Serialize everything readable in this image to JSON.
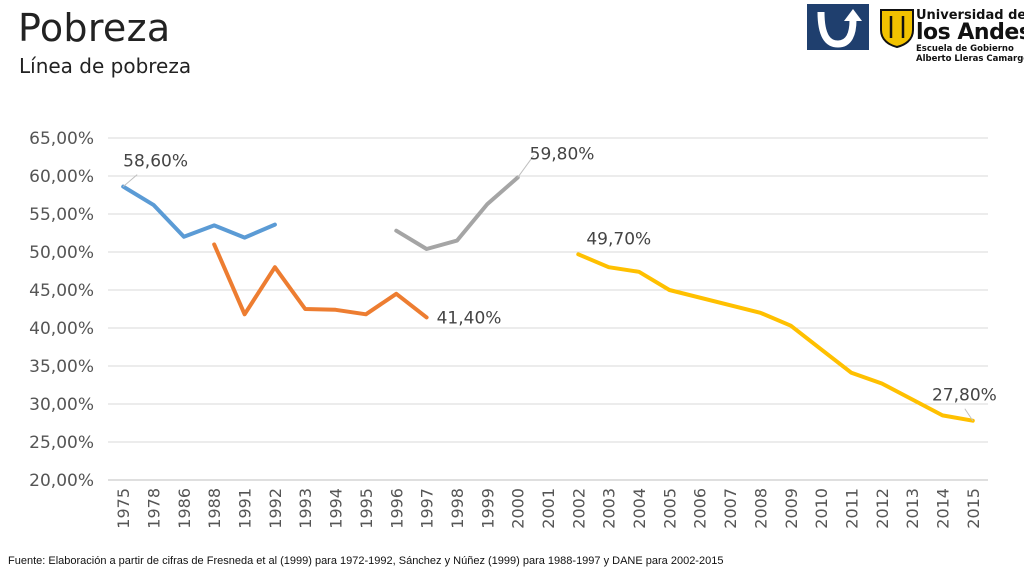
{
  "header": {
    "title": "Pobreza",
    "subtitle": "Línea de pobreza"
  },
  "logos": {
    "university_line1": "Universidad de",
    "university_line2": "los Andes",
    "school_line1": "Escuela de Gobierno",
    "school_line2": "Alberto Lleras Camargo",
    "accent_color": "#1f3f6e",
    "shield_color": "#f2c200"
  },
  "footer": {
    "source": "Fuente: Elaboración a partir de cifras de Fresneda et al (1999) para 1972-1992, Sánchez y Núñez (1999) para 1988-1997 y DANE para 2002-2015"
  },
  "chart_data": {
    "type": "line",
    "title": "",
    "xlabel": "",
    "ylabel": "",
    "ylim": [
      20,
      65
    ],
    "y_tick_labels": [
      "20,00%",
      "25,00%",
      "30,00%",
      "35,00%",
      "40,00%",
      "45,00%",
      "50,00%",
      "55,00%",
      "60,00%",
      "65,00%"
    ],
    "grid": true,
    "categories": [
      "1975",
      "1978",
      "1986",
      "1988",
      "1991",
      "1992",
      "1993",
      "1994",
      "1995",
      "1996",
      "1997",
      "1998",
      "1999",
      "2000",
      "2001",
      "2002",
      "2003",
      "2004",
      "2005",
      "2006",
      "2007",
      "2008",
      "2009",
      "2010",
      "2011",
      "2012",
      "2013",
      "2014",
      "2015"
    ],
    "series": [
      {
        "color": "#5b9bd5",
        "values": [
          58.6,
          56.2,
          52.0,
          53.5,
          51.9,
          53.6,
          null,
          null,
          null,
          null,
          null,
          null,
          null,
          null,
          null,
          null,
          null,
          null,
          null,
          null,
          null,
          null,
          null,
          null,
          null,
          null,
          null,
          null,
          null
        ]
      },
      {
        "color": "#ed7d31",
        "values": [
          null,
          null,
          null,
          51.0,
          41.8,
          48.0,
          42.5,
          42.4,
          41.8,
          44.5,
          41.4,
          null,
          null,
          null,
          null,
          null,
          null,
          null,
          null,
          null,
          null,
          null,
          null,
          null,
          null,
          null,
          null,
          null,
          null
        ]
      },
      {
        "color": "#a5a5a5",
        "values": [
          null,
          null,
          null,
          null,
          null,
          null,
          null,
          null,
          null,
          52.8,
          50.4,
          51.5,
          56.3,
          59.8,
          null,
          null,
          null,
          null,
          null,
          null,
          null,
          null,
          null,
          null,
          null,
          null,
          null,
          null,
          null
        ]
      },
      {
        "color": "#ffc000",
        "values": [
          null,
          null,
          null,
          null,
          null,
          null,
          null,
          null,
          null,
          null,
          null,
          null,
          null,
          null,
          null,
          49.7,
          48.0,
          47.4,
          45.0,
          null,
          null,
          42.0,
          40.3,
          37.2,
          34.1,
          32.7,
          30.6,
          28.5,
          27.8
        ]
      }
    ],
    "data_labels": [
      {
        "text": "58,60%",
        "category": "1975",
        "value": 58.6
      },
      {
        "text": "41,40%",
        "category": "1997",
        "value": 41.4
      },
      {
        "text": "59,80%",
        "category": "2000",
        "value": 59.8
      },
      {
        "text": "49,70%",
        "category": "2002",
        "value": 49.7
      },
      {
        "text": "27,80%",
        "category": "2015",
        "value": 27.8
      }
    ]
  }
}
